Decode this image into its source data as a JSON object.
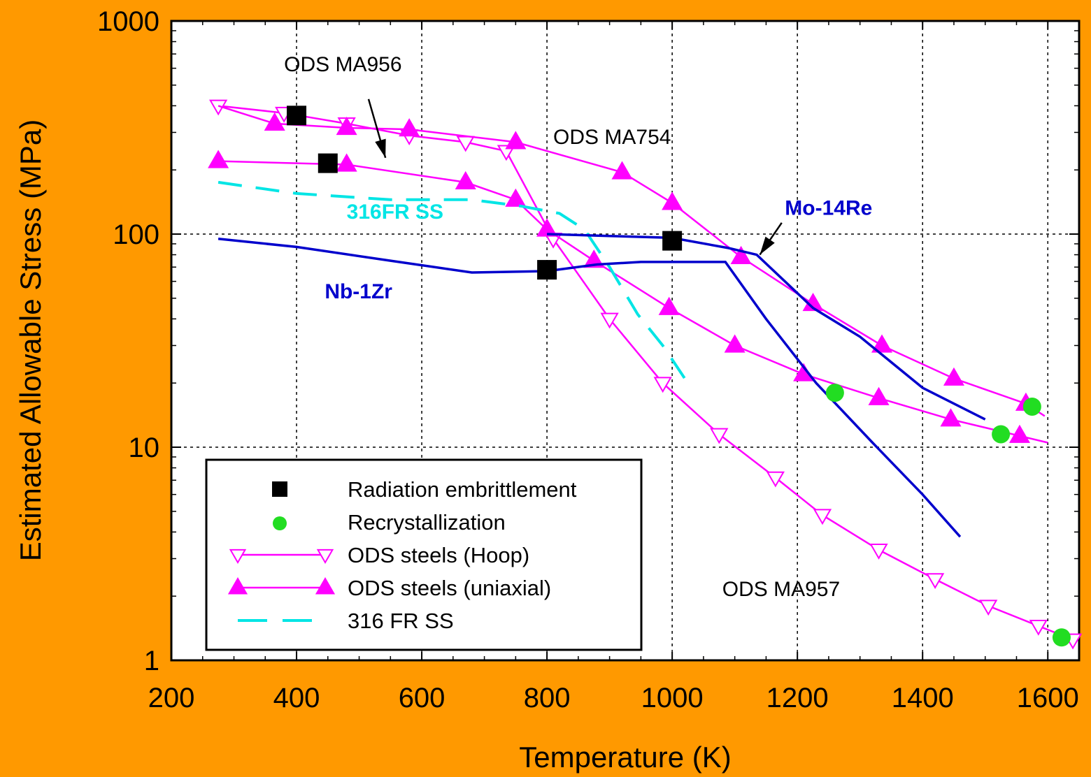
{
  "chart_data": {
    "type": "line",
    "xlabel": "Temperature (K)",
    "ylabel": "Estimated Allowable Stress (MPa)",
    "xlim": [
      200,
      1650
    ],
    "ylim": [
      1,
      1000
    ],
    "y_scale": "log",
    "x_ticks": [
      200,
      400,
      600,
      800,
      1000,
      1200,
      1400,
      1600
    ],
    "y_ticks": [
      1,
      10,
      100,
      1000
    ],
    "grid": "dashed",
    "legend_position": "lower-left",
    "colors": {
      "magenta": "#FF00FF",
      "blue": "#0000CC",
      "cyan": "#00E5E5",
      "green": "#22DD22",
      "black": "#000000",
      "background": "#FF9900"
    },
    "series": [
      {
        "name": "ODS steels (Hoop)",
        "label": "ODS MA956",
        "style": "hoop",
        "x": [
          275,
          380,
          480,
          580,
          670,
          735,
          810,
          900,
          985,
          1075,
          1165,
          1240,
          1330,
          1420,
          1505,
          1585,
          1640
        ],
        "y": [
          400,
          370,
          330,
          290,
          270,
          245,
          95,
          40,
          20,
          11.5,
          7.2,
          4.8,
          3.3,
          2.4,
          1.8,
          1.45,
          1.25
        ]
      },
      {
        "name": "ODS steels (uniaxial)",
        "label": "ODS MA754",
        "style": "uniaxial",
        "x": [
          275,
          365,
          480,
          580,
          750,
          920,
          1000,
          1110,
          1225,
          1335,
          1450,
          1565,
          1595
        ],
        "y": [
          400,
          330,
          315,
          310,
          270,
          195,
          140,
          78,
          47,
          30,
          21,
          16,
          14
        ]
      },
      {
        "name": "ODS steels (uniaxial)",
        "label": "ODS MA957",
        "style": "uniaxial",
        "x": [
          275,
          480,
          670,
          750,
          800,
          875,
          995,
          1100,
          1210,
          1330,
          1445,
          1555,
          1600
        ],
        "y": [
          220,
          212,
          175,
          145,
          105,
          75,
          45,
          30,
          22,
          17,
          13.5,
          11.3,
          10.5
        ]
      },
      {
        "name": "316 FR SS",
        "style": "dashed",
        "x": [
          275,
          400,
          550,
          680,
          760,
          820,
          860,
          900,
          945,
          985,
          1025
        ],
        "y": [
          175,
          155,
          145,
          145,
          135,
          125,
          105,
          70,
          42,
          30,
          20
        ]
      },
      {
        "name": "",
        "label": "Nb-1Zr",
        "style": "solid-blue",
        "x": [
          275,
          400,
          550,
          680,
          800,
          880,
          950,
          1000,
          1085,
          1150,
          1230,
          1320,
          1400,
          1460
        ],
        "y": [
          95,
          87,
          75,
          66,
          67,
          72,
          74,
          74,
          74,
          40,
          20,
          10.5,
          6,
          3.8
        ]
      },
      {
        "name": "",
        "label": "Mo-14Re",
        "style": "solid-blue",
        "x": [
          800,
          900,
          1000,
          1090,
          1135,
          1180,
          1225,
          1300,
          1400,
          1500
        ],
        "y": [
          100,
          98,
          96,
          86,
          80,
          60,
          45,
          33,
          19,
          13.5
        ]
      },
      {
        "name": "Radiation embrittlement",
        "style": "black-square",
        "x": [
          400,
          450,
          800,
          1000
        ],
        "y": [
          360,
          215,
          68,
          93
        ]
      },
      {
        "name": "Recrystallization",
        "style": "green-circle",
        "x": [
          1260,
          1525,
          1575,
          1622
        ],
        "y": [
          18,
          11.5,
          15.5,
          1.28
        ]
      }
    ],
    "annotations": [
      {
        "text": "ODS MA956",
        "x": 380,
        "y": 580,
        "color": "black"
      },
      {
        "text": "ODS MA754",
        "x": 810,
        "y": 265,
        "color": "black"
      },
      {
        "text": "316FR SS",
        "x": 480,
        "y": 118,
        "color": "cyan"
      },
      {
        "text": "Mo-14Re",
        "x": 1180,
        "y": 123,
        "color": "blue"
      },
      {
        "text": "Nb-1Zr",
        "x": 445,
        "y": 50,
        "color": "blue"
      },
      {
        "text": "ODS MA957",
        "x": 1080,
        "y": 2.0,
        "color": "black"
      }
    ],
    "arrows": [
      {
        "from": [
          515,
          430
        ],
        "to": [
          542,
          228
        ]
      },
      {
        "from": [
          1175,
          113
        ],
        "to": [
          1140,
          80
        ]
      }
    ]
  }
}
